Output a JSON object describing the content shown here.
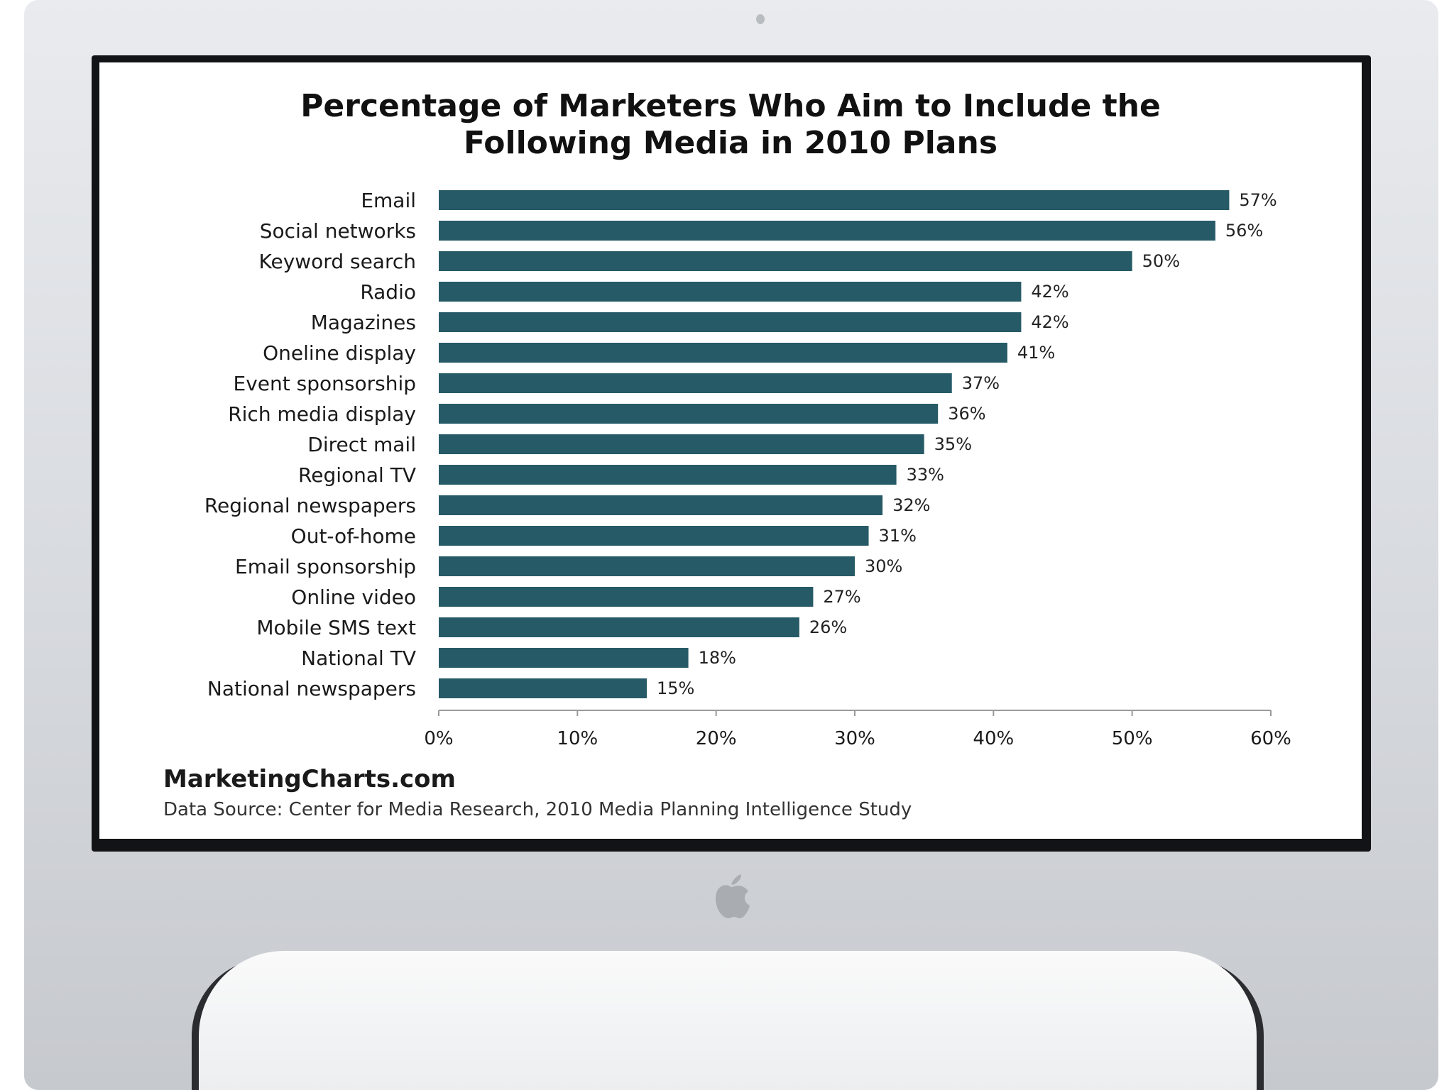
{
  "chart_data": {
    "type": "bar",
    "orientation": "horizontal",
    "title": "Percentage of Marketers Who Aim to Include the Following Media in 2010 Plans",
    "title_lines": [
      "Percentage of Marketers Who Aim to Include the",
      "Following Media in 2010 Plans"
    ],
    "categories": [
      "Email",
      "Social networks",
      "Keyword search",
      "Radio",
      "Magazines",
      "Oneline display",
      "Event sponsorship",
      "Rich media display",
      "Direct mail",
      "Regional TV",
      "Regional newspapers",
      "Out-of-home",
      "Email sponsorship",
      "Online video",
      "Mobile SMS text",
      "National TV",
      "National newspapers"
    ],
    "values": [
      57,
      56,
      50,
      42,
      42,
      41,
      37,
      36,
      35,
      33,
      32,
      31,
      30,
      27,
      26,
      18,
      15
    ],
    "value_labels": [
      "57%",
      "56%",
      "50%",
      "42%",
      "42%",
      "41%",
      "37%",
      "36%",
      "35%",
      "33%",
      "32%",
      "31%",
      "30%",
      "27%",
      "26%",
      "18%",
      "15%"
    ],
    "xlim": [
      0,
      60
    ],
    "xticks": [
      0,
      10,
      20,
      30,
      40,
      50,
      60
    ],
    "xtick_labels": [
      "0%",
      "10%",
      "20%",
      "30%",
      "40%",
      "50%",
      "60%"
    ],
    "xlabel": "",
    "ylabel": "",
    "grid": false,
    "bar_color": "#265a67"
  },
  "footer": {
    "brand": "MarketingCharts.com",
    "source": "Data Source: Center for Media Research, 2010 Media Planning Intelligence Study"
  },
  "device": {
    "logo_icon": "apple-logo-icon",
    "frame_color": "#d9dce0"
  }
}
